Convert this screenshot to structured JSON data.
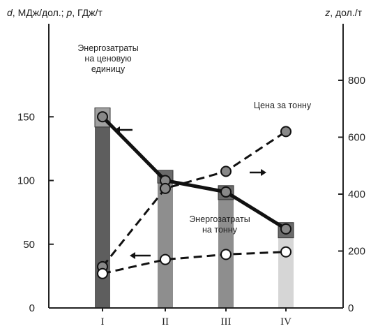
{
  "chart_data": {
    "type": "bar",
    "left_axis_label": {
      "sym1": "d",
      "text1": ", МДж/дол.; ",
      "sym2": "p",
      "text2": ", ГДж/т"
    },
    "right_axis_label": {
      "sym": "z",
      "text": ", дол./т"
    },
    "categories": [
      "I",
      "II",
      "III",
      "IV"
    ],
    "y_left": {
      "range": [
        0,
        170
      ],
      "ticks": [
        "0",
        "50",
        "100",
        "150"
      ]
    },
    "y_right": {
      "range": [
        0,
        900
      ],
      "ticks": [
        "0",
        "200",
        "400",
        "600",
        "800"
      ]
    },
    "bars": [
      {
        "category": "I",
        "lower": 142,
        "upper": 157,
        "color": "#5e5e5e",
        "band_color": "#a0a0a0"
      },
      {
        "category": "II",
        "lower": 98,
        "upper": 108,
        "color": "#8e8e8e",
        "band_color": "#6a6a6a"
      },
      {
        "category": "III",
        "lower": 85,
        "upper": 96,
        "color": "#8e8e8e",
        "band_color": "#6a6a6a"
      },
      {
        "category": "IV",
        "lower": 55,
        "upper": 67,
        "color": "#d6d6d6",
        "band_color": "#6a6a6a"
      }
    ],
    "series": [
      {
        "axis": "left",
        "style": "solid",
        "marker_fill": "#888888",
        "values": [
          150,
          100,
          91,
          62
        ]
      },
      {
        "axis": "right",
        "style": "dashed",
        "marker_fill": "#888888",
        "values": [
          145,
          420,
          480,
          620
        ]
      },
      {
        "axis": "left",
        "style": "dashed",
        "marker_fill": "#ffffff",
        "values": [
          27,
          38,
          42,
          44
        ]
      }
    ],
    "annotations": [
      {
        "id": "energy_per_unit",
        "lines": [
          "Энергозатраты",
          "на ценовую",
          "единицу"
        ]
      },
      {
        "id": "price_per_ton",
        "lines": [
          "Цена за тонну"
        ]
      },
      {
        "id": "energy_per_ton",
        "lines": [
          "Энергозатраты",
          "на тонну"
        ]
      }
    ],
    "colors": {
      "axis": "#222222",
      "lines": "#111111"
    }
  }
}
